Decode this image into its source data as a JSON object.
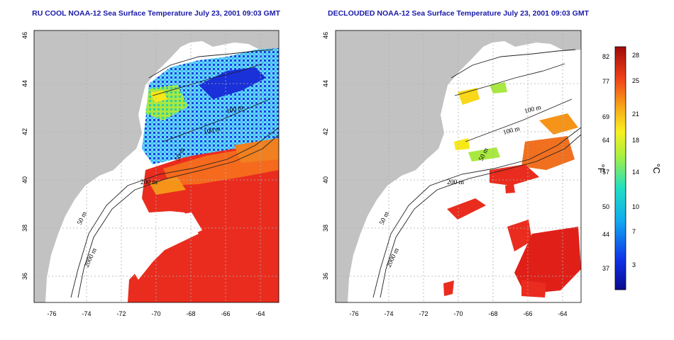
{
  "panels": [
    {
      "title": "RU COOL NOAA-12 Sea Surface Temperature July 23, 2001 09:03 GMT",
      "x_ticks": [
        "-76",
        "-74",
        "-72",
        "-70",
        "-68",
        "-66",
        "-64"
      ],
      "y_ticks": [
        "36",
        "38",
        "40",
        "42",
        "44",
        "46"
      ],
      "contour_labels": [
        "100 m",
        "100 m",
        "50 m",
        "200 m",
        "50 m",
        "2000 m"
      ]
    },
    {
      "title": "DECLOUDED NOAA-12 Sea Surface Temperature July 23, 2001 09:03 GMT",
      "x_ticks": [
        "-76",
        "-74",
        "-72",
        "-70",
        "-68",
        "-66",
        "-64"
      ],
      "y_ticks": [
        "36",
        "38",
        "40",
        "42",
        "44",
        "46"
      ],
      "contour_labels": [
        "100 m",
        "100 m",
        "50 m",
        "200 m",
        "50 m",
        "2000 m"
      ]
    }
  ],
  "colorbar": {
    "fahrenheit_ticks": [
      "82",
      "77",
      "69",
      "64",
      "57",
      "50",
      "44",
      "37"
    ],
    "celsius_ticks": [
      "28",
      "25",
      "21",
      "18",
      "14",
      "10",
      "7",
      "3"
    ],
    "fahrenheit_unit": "°F",
    "celsius_unit": "°C"
  },
  "colors": {
    "land": "#c2c2c2",
    "title": "#1a1aa8",
    "warm": "#e8281c",
    "cool": "#2a7ae8"
  }
}
